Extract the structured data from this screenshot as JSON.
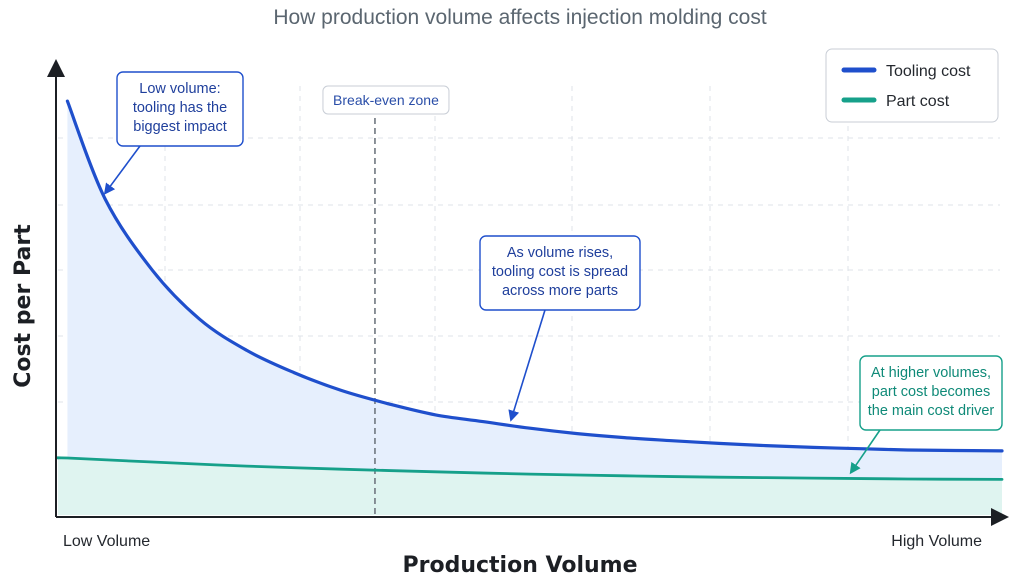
{
  "chart_data": {
    "type": "line",
    "title": "How production volume affects injection molding cost",
    "xlabel": "Production Volume",
    "ylabel": "Cost per Part",
    "x_tick_labels": [
      "Low Volume",
      "High Volume"
    ],
    "xlim": [
      0,
      100
    ],
    "ylim": [
      0,
      100
    ],
    "grid": true,
    "legend_position": "top-right",
    "series": [
      {
        "name": "Tooling cost",
        "color": "#1f4fcc",
        "x": [
          1,
          5,
          10,
          15,
          20,
          25,
          30,
          35,
          40,
          45,
          50,
          55,
          60,
          65,
          70,
          75,
          80,
          85,
          90,
          95,
          100
        ],
        "y": [
          93,
          71,
          55,
          44,
          37,
          32,
          28,
          25,
          22.5,
          21,
          19.5,
          18.3,
          17.4,
          16.7,
          16.1,
          15.6,
          15.2,
          14.9,
          14.6,
          14.5,
          14.4
        ]
      },
      {
        "name": "Part cost",
        "color": "#16a08a",
        "x": [
          1,
          10,
          20,
          30,
          40,
          50,
          60,
          70,
          80,
          90,
          100
        ],
        "y": [
          12.8,
          11.9,
          11.0,
          10.3,
          9.7,
          9.2,
          8.8,
          8.5,
          8.3,
          8.1,
          8.0
        ]
      }
    ],
    "markers": [
      {
        "label": "Break-even zone",
        "x": 34
      }
    ],
    "annotations": [
      {
        "lines": [
          "Low volume:",
          "tooling has the",
          "biggest impact"
        ],
        "series": "Tooling cost",
        "point_x": 5
      },
      {
        "lines": [
          "As volume rises,",
          "tooling cost is spread",
          "across more parts"
        ],
        "series": "Tooling cost",
        "point_x": 48
      },
      {
        "lines": [
          "At higher volumes,",
          "part cost becomes",
          "the main cost driver"
        ],
        "series": "Part cost",
        "point_x": 84
      }
    ]
  }
}
